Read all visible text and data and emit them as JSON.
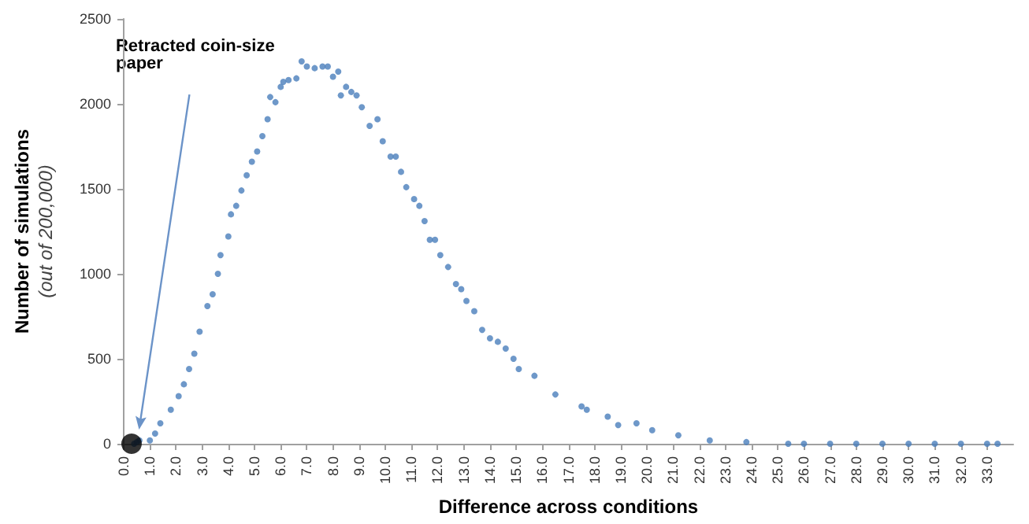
{
  "chart_data": {
    "type": "scatter",
    "xlabel": "Difference across conditions",
    "ylabel": "Number of simulations\n(out of 200,000)",
    "xlim": [
      0,
      34
    ],
    "ylim": [
      0,
      2500
    ],
    "yticks": [
      0,
      500,
      1000,
      1500,
      2000,
      2500
    ],
    "xticks": [
      {
        "value": 0,
        "label": "0.0"
      },
      {
        "value": 1,
        "label": "1.0"
      },
      {
        "value": 2,
        "label": "2.0"
      },
      {
        "value": 3,
        "label": "3.0"
      },
      {
        "value": 4,
        "label": "4.0"
      },
      {
        "value": 5,
        "label": "5.0"
      },
      {
        "value": 6,
        "label": "6.0"
      },
      {
        "value": 7,
        "label": "7.0"
      },
      {
        "value": 8,
        "label": "8.0"
      },
      {
        "value": 9,
        "label": "9.0"
      },
      {
        "value": 10,
        "label": "10.0"
      },
      {
        "value": 11,
        "label": "11.0"
      },
      {
        "value": 12,
        "label": "12.0"
      },
      {
        "value": 13,
        "label": "13.0"
      },
      {
        "value": 14,
        "label": "14.0"
      },
      {
        "value": 15,
        "label": "15.0"
      },
      {
        "value": 16,
        "label": "16.0"
      },
      {
        "value": 17,
        "label": "17.0"
      },
      {
        "value": 18,
        "label": "18.0"
      },
      {
        "value": 19,
        "label": "19.0"
      },
      {
        "value": 20,
        "label": "20.0"
      },
      {
        "value": 21,
        "label": "21.0"
      },
      {
        "value": 22,
        "label": "22.0"
      },
      {
        "value": 23,
        "label": "23.0"
      },
      {
        "value": 24,
        "label": "24.0"
      },
      {
        "value": 25,
        "label": "25.0"
      },
      {
        "value": 26,
        "label": "26.0"
      },
      {
        "value": 27,
        "label": "27.0"
      },
      {
        "value": 28,
        "label": "28.0"
      },
      {
        "value": 29,
        "label": "29.0"
      },
      {
        "value": 30,
        "label": "30.0"
      },
      {
        "value": 31,
        "label": "31.0"
      },
      {
        "value": 32,
        "label": "32.0"
      },
      {
        "value": 33,
        "label": "33.0"
      }
    ],
    "grid": false,
    "marker": "circle",
    "series": [
      {
        "color": "#4a7ebb",
        "x": [
          0.4,
          0.5,
          0.6,
          1.0,
          1.2,
          1.4,
          1.8,
          2.1,
          2.3,
          2.5,
          2.7,
          2.9,
          3.2,
          3.4,
          3.6,
          3.7,
          4.0,
          4.1,
          4.3,
          4.5,
          4.7,
          4.9,
          5.1,
          5.3,
          5.5,
          5.6,
          5.8,
          6.0,
          6.1,
          6.3,
          6.6,
          6.8,
          7.0,
          7.3,
          7.6,
          7.8,
          8.0,
          8.2,
          8.3,
          8.5,
          8.7,
          8.9,
          9.1,
          9.4,
          9.7,
          9.9,
          10.2,
          10.4,
          10.6,
          10.8,
          11.1,
          11.3,
          11.5,
          11.7,
          11.9,
          12.1,
          12.4,
          12.7,
          12.9,
          13.1,
          13.4,
          13.7,
          14.0,
          14.3,
          14.6,
          14.9,
          15.1,
          15.7,
          16.5,
          17.5,
          17.7,
          18.5,
          18.9,
          19.6,
          20.2,
          21.2,
          22.4,
          23.8,
          25.4,
          26.0,
          27.0,
          28.0,
          29.0,
          30.0,
          31.0,
          32.0,
          33.0,
          33.4
        ],
        "values": [
          0,
          10,
          20,
          20,
          60,
          120,
          200,
          280,
          350,
          440,
          530,
          660,
          810,
          880,
          1000,
          1110,
          1220,
          1350,
          1400,
          1490,
          1580,
          1660,
          1720,
          1810,
          1910,
          2040,
          2010,
          2100,
          2130,
          2140,
          2150,
          2250,
          2220,
          2210,
          2220,
          2220,
          2160,
          2190,
          2050,
          2100,
          2070,
          2050,
          1980,
          1870,
          1910,
          1780,
          1690,
          1690,
          1600,
          1510,
          1440,
          1400,
          1310,
          1200,
          1200,
          1110,
          1040,
          940,
          910,
          840,
          780,
          670,
          620,
          600,
          560,
          500,
          440,
          400,
          290,
          220,
          200,
          160,
          110,
          120,
          80,
          50,
          20,
          10,
          0,
          0,
          0,
          0,
          0,
          0,
          0,
          0,
          0,
          0
        ]
      },
      {
        "color": "#000000",
        "x": [
          0.3
        ],
        "values": [
          0
        ]
      }
    ],
    "annotations": [
      "Retracted coin-size paper"
    ]
  }
}
